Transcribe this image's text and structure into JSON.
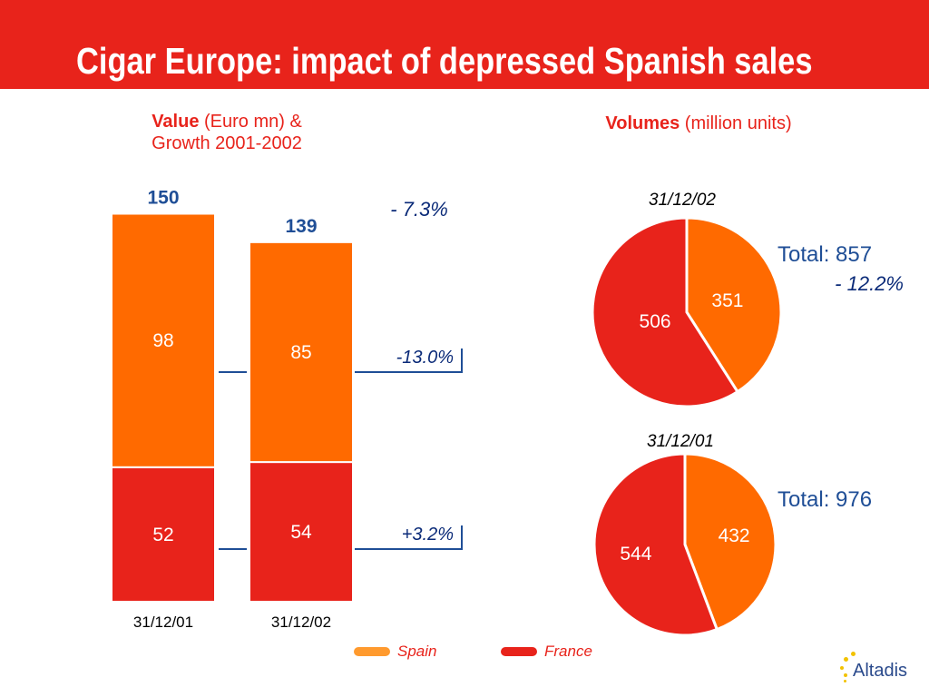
{
  "title": "Cigar Europe: impact of depressed Spanish sales",
  "value_heading": {
    "bold": "Value",
    "rest": " (Euro mn) &",
    "line2": "Growth 2001-2002"
  },
  "volumes_heading": {
    "bold": "Volumes",
    "rest": " (million units)"
  },
  "colors": {
    "spain": "#ff6a00",
    "france": "#e8231b",
    "header": "#e8231b",
    "total_text": "#1f4e96",
    "growth_text": "#0a2a78"
  },
  "legend": {
    "spain": "Spain",
    "france": "France"
  },
  "logo": {
    "text": "Altadis"
  },
  "chart_data": [
    {
      "type": "bar",
      "stacked": true,
      "categories": [
        "31/12/01",
        "31/12/02"
      ],
      "series": [
        {
          "name": "France",
          "values": [
            52,
            54
          ]
        },
        {
          "name": "Spain",
          "values": [
            98,
            85
          ]
        }
      ],
      "totals": [
        "150",
        "139"
      ],
      "value_labels": {
        "France": [
          "52",
          "54"
        ],
        "Spain": [
          "98",
          "85"
        ]
      },
      "growth": {
        "total": "- 7.3%",
        "Spain": "-13.0%",
        "France": "+3.2%"
      }
    },
    {
      "type": "pie",
      "label": "31/12/02",
      "slices": [
        {
          "name": "Spain",
          "value": 351,
          "label": "351"
        },
        {
          "name": "France",
          "value": 506,
          "label": "506"
        }
      ],
      "total_label": "Total: 857",
      "growth": "- 12.2%"
    },
    {
      "type": "pie",
      "label": "31/12/01",
      "slices": [
        {
          "name": "Spain",
          "value": 432,
          "label": "432"
        },
        {
          "name": "France",
          "value": 544,
          "label": "544"
        }
      ],
      "total_label": "Total: 976"
    }
  ]
}
